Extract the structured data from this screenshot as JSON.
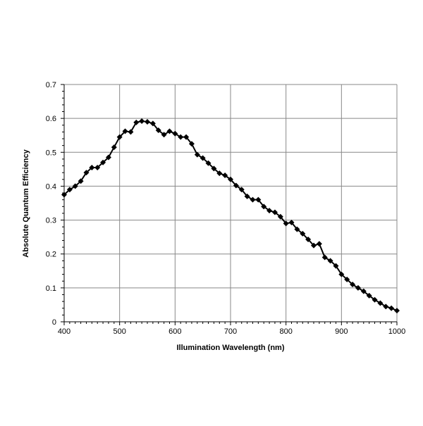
{
  "chart_data": {
    "type": "line",
    "title": "",
    "xlabel": "Illumination Wavelength (nm)",
    "ylabel": "Absolute Quantum Efficiency",
    "xlim": [
      400,
      1000
    ],
    "ylim": [
      0,
      0.7
    ],
    "xticks": [
      400,
      500,
      600,
      700,
      800,
      900,
      1000
    ],
    "yticks": [
      "0",
      "0.1",
      "0.2",
      "0.3",
      "0.4",
      "0.5",
      "0.6",
      "0.7"
    ],
    "grid": true,
    "marker": "diamond",
    "line_color": "#000000",
    "x": [
      400,
      410,
      420,
      430,
      440,
      450,
      460,
      470,
      480,
      490,
      500,
      510,
      520,
      530,
      540,
      550,
      560,
      570,
      580,
      590,
      600,
      610,
      620,
      630,
      640,
      650,
      660,
      670,
      680,
      690,
      700,
      710,
      720,
      730,
      740,
      750,
      760,
      770,
      780,
      790,
      800,
      810,
      820,
      830,
      840,
      850,
      860,
      870,
      880,
      890,
      900,
      910,
      920,
      930,
      940,
      950,
      960,
      970,
      980,
      990,
      1000
    ],
    "y": [
      0.375,
      0.39,
      0.4,
      0.415,
      0.44,
      0.455,
      0.455,
      0.47,
      0.485,
      0.515,
      0.545,
      0.562,
      0.56,
      0.588,
      0.592,
      0.59,
      0.585,
      0.565,
      0.552,
      0.562,
      0.555,
      0.545,
      0.545,
      0.525,
      0.493,
      0.483,
      0.468,
      0.452,
      0.438,
      0.432,
      0.42,
      0.402,
      0.39,
      0.37,
      0.36,
      0.36,
      0.34,
      0.328,
      0.323,
      0.31,
      0.29,
      0.293,
      0.273,
      0.26,
      0.243,
      0.225,
      0.23,
      0.19,
      0.18,
      0.165,
      0.14,
      0.125,
      0.11,
      0.1,
      0.09,
      0.077,
      0.065,
      0.055,
      0.045,
      0.04,
      0.033
    ]
  }
}
